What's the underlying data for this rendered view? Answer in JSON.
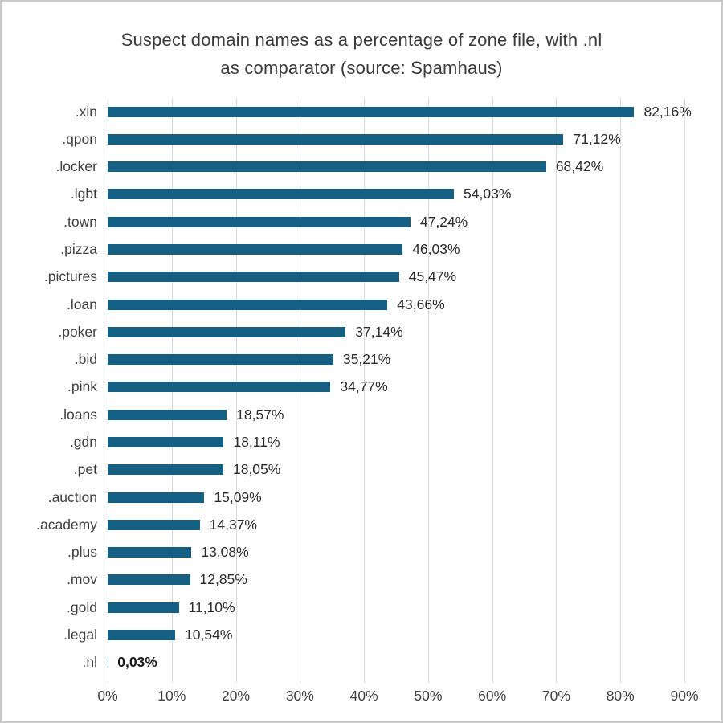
{
  "frame": {
    "background_color": "#ffffff",
    "border_color": "#c9c9c9"
  },
  "chart_data": {
    "type": "bar",
    "orientation": "horizontal",
    "title": "Suspect domain names as a percentage of zone file, with .nl as comparator (source: Spamhaus)",
    "title_lines": [
      "Suspect domain names as a percentage of zone file, with .nl",
      "as comparator (source: Spamhaus)"
    ],
    "categories": [
      ".xin",
      ".qpon",
      ".locker",
      ".lgbt",
      ".town",
      ".pizza",
      ".pictures",
      ".loan",
      ".poker",
      ".bid",
      ".pink",
      ".loans",
      ".gdn",
      ".pet",
      ".auction",
      ".academy",
      ".plus",
      ".mov",
      ".gold",
      ".legal",
      ".nl"
    ],
    "values": [
      82.16,
      71.12,
      68.42,
      54.03,
      47.24,
      46.03,
      45.47,
      43.66,
      37.14,
      35.21,
      34.77,
      18.57,
      18.11,
      18.05,
      15.09,
      14.37,
      13.08,
      12.85,
      11.1,
      10.54,
      0.03
    ],
    "value_labels": [
      "82,16%",
      "71,12%",
      "68,42%",
      "54,03%",
      "47,24%",
      "46,03%",
      "45,47%",
      "43,66%",
      "37,14%",
      "35,21%",
      "34,77%",
      "18,57%",
      "18,11%",
      "18,05%",
      "15,09%",
      "14,37%",
      "13,08%",
      "12,85%",
      "11,10%",
      "10,54%",
      "0,03%"
    ],
    "emphasized_category": ".nl",
    "xlabel": "",
    "ylabel": "",
    "xlim": [
      0,
      90
    ],
    "x_tick_values": [
      0,
      10,
      20,
      30,
      40,
      50,
      60,
      70,
      80,
      90
    ],
    "x_tick_labels": [
      "0%",
      "10%",
      "20%",
      "30%",
      "40%",
      "50%",
      "60%",
      "70%",
      "80%",
      "90%"
    ],
    "grid": true,
    "legend": "none",
    "bar_color": "#156082",
    "gridline_color": "#d9d9d9"
  }
}
